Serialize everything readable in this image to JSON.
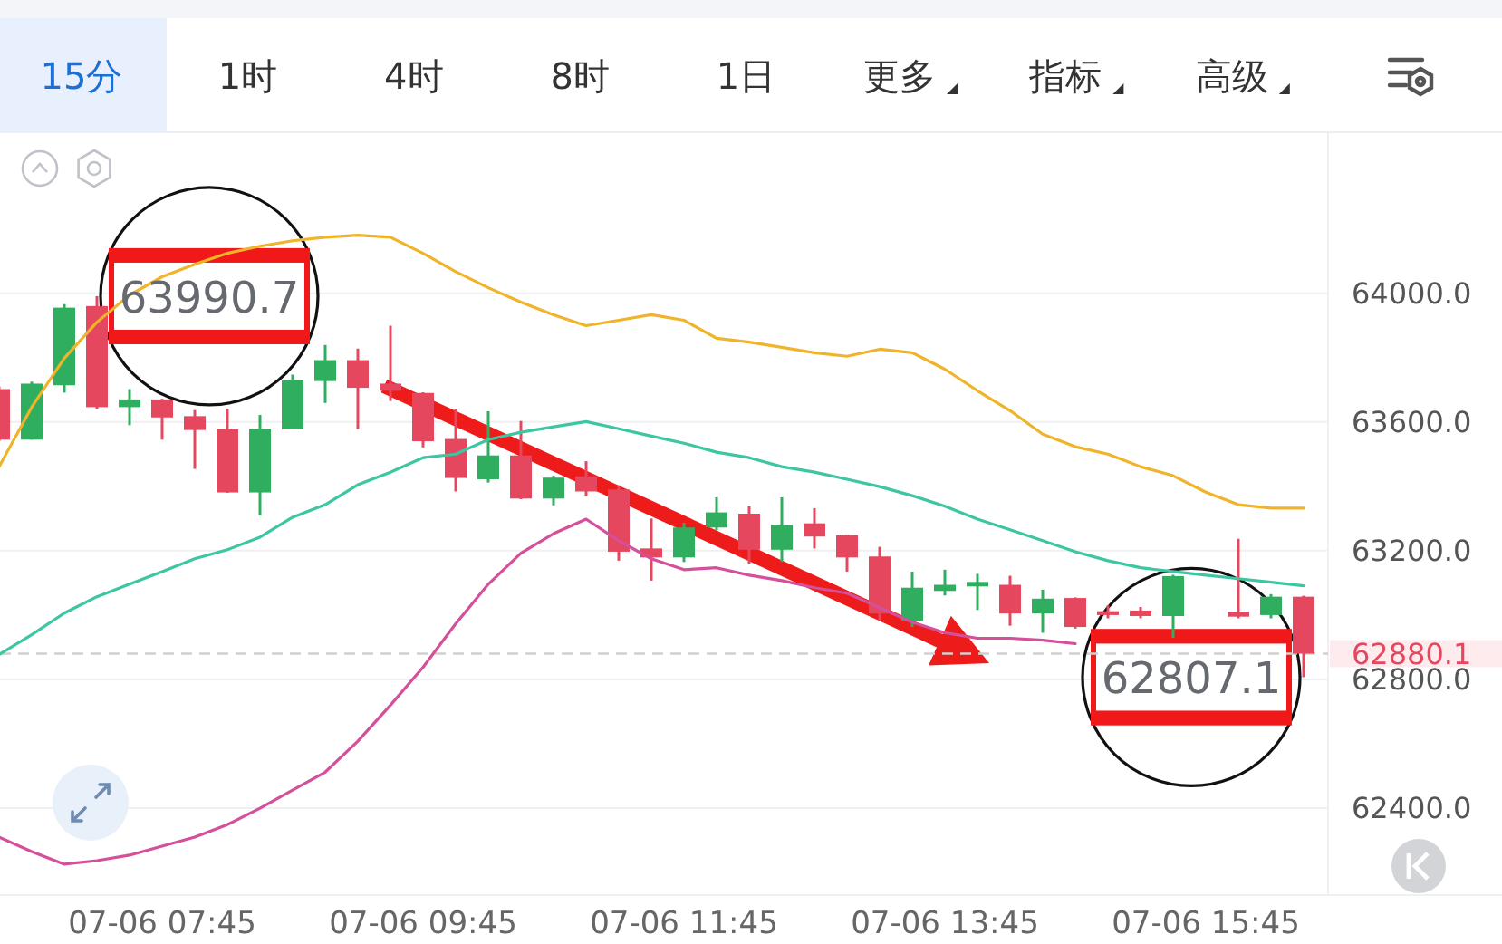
{
  "chart_data": {
    "type": "candlestick",
    "categories": [
      null,
      null,
      null,
      null,
      null,
      "07-06 07:45",
      null,
      null,
      null,
      null,
      null,
      null,
      null,
      "07-06 09:45",
      null,
      null,
      null,
      null,
      null,
      null,
      null,
      "07-06 11:45",
      null,
      null,
      null,
      null,
      null,
      null,
      null,
      "07-06 13:45",
      null,
      null,
      null,
      null,
      null,
      null,
      null,
      "07-06 15:45",
      null,
      null,
      null
    ],
    "ohlc": [
      [
        63702,
        63710,
        63540,
        63545
      ],
      [
        63545,
        63725,
        63545,
        63719
      ],
      [
        63714,
        63966,
        63691,
        63955
      ],
      [
        63960,
        63990.7,
        63640,
        63646
      ],
      [
        63646,
        63702,
        63590,
        63670
      ],
      [
        63670,
        63672,
        63545,
        63614
      ],
      [
        63618,
        63637,
        63454,
        63575
      ],
      [
        63577,
        63641,
        63380,
        63381
      ],
      [
        63381,
        63622,
        63309,
        63579
      ],
      [
        63577,
        63747,
        63577,
        63731
      ],
      [
        63727,
        63839,
        63659,
        63792
      ],
      [
        63792,
        63828,
        63577,
        63706
      ],
      [
        63719,
        63899,
        63665,
        63697
      ],
      [
        63690,
        63692,
        63521,
        63540
      ],
      [
        63547,
        63641,
        63384,
        63426
      ],
      [
        63422,
        63633,
        63412,
        63496
      ],
      [
        63496,
        63603,
        63360,
        63362
      ],
      [
        63362,
        63433,
        63341,
        63427
      ],
      [
        63431,
        63478,
        63371,
        63384
      ],
      [
        63390,
        63403,
        63169,
        63197
      ],
      [
        63207,
        63300,
        63107,
        63179
      ],
      [
        63179,
        63287,
        63165,
        63272
      ],
      [
        63272,
        63366,
        63263,
        63319
      ],
      [
        63315,
        63338,
        63160,
        63203
      ],
      [
        63203,
        63366,
        63165,
        63281
      ],
      [
        63285,
        63332,
        63207,
        63244
      ],
      [
        63248,
        63250,
        63135,
        63179
      ],
      [
        63182,
        63212,
        62982,
        63005
      ],
      [
        62982,
        63135,
        62963,
        63085
      ],
      [
        63075,
        63141,
        63061,
        63094
      ],
      [
        63089,
        63128,
        63016,
        63103
      ],
      [
        63094,
        63122,
        62967,
        63005
      ],
      [
        63005,
        63079,
        62945,
        63051
      ],
      [
        63053,
        63055,
        62958,
        62963
      ],
      [
        63012,
        63030,
        62990,
        63000
      ],
      [
        63014,
        63025,
        62990,
        62997
      ],
      [
        62997,
        63125,
        62929,
        63121
      ],
      null,
      [
        63010,
        63237,
        62990,
        62995
      ],
      [
        63000,
        63065,
        62990,
        63057
      ],
      [
        63057,
        63060,
        62807.1,
        62880.1
      ]
    ],
    "colors": [
      "#e5485e",
      "#2fae5f",
      "#2fae5f",
      "#e5485e",
      "#2fae5f",
      "#e5485e",
      "#e5485e",
      "#e5485e",
      "#2fae5f",
      "#2fae5f",
      "#2fae5f",
      "#e5485e",
      "#e5485e",
      "#e5485e",
      "#e5485e",
      "#2fae5f",
      "#e5485e",
      "#2fae5f",
      "#e5485e",
      "#e5485e",
      "#e5485e",
      "#2fae5f",
      "#2fae5f",
      "#e5485e",
      "#2fae5f",
      "#e5485e",
      "#e5485e",
      "#e5485e",
      "#2fae5f",
      "#2fae5f",
      "#2fae5f",
      "#e5485e",
      "#2fae5f",
      "#e5485e",
      "#e5485e",
      "#e5485e",
      "#2fae5f",
      null,
      "#e5485e",
      "#2fae5f",
      "#e5485e"
    ],
    "series": [
      {
        "type": "line",
        "color": "#f0b42a",
        "values": [
          63461,
          63646,
          63798,
          63910,
          63994,
          64051,
          64090,
          64124,
          64146,
          64163,
          64174,
          64180,
          64174,
          64124,
          64067,
          64017,
          63972,
          63933,
          63899,
          63916,
          63933,
          63916,
          63860,
          63848,
          63832,
          63815,
          63804,
          63826,
          63815,
          63764,
          63697,
          63635,
          63562,
          63523,
          63500,
          63461,
          63433,
          63382,
          63343,
          63332,
          63332
        ]
      },
      {
        "type": "line",
        "color": "#3ec6a2",
        "values": [
          62877,
          62939,
          63006,
          63057,
          63096,
          63135,
          63175,
          63203,
          63242,
          63304,
          63343,
          63405,
          63444,
          63489,
          63500,
          63545,
          63568,
          63585,
          63601,
          63579,
          63556,
          63534,
          63506,
          63489,
          63461,
          63444,
          63422,
          63399,
          63371,
          63338,
          63298,
          63265,
          63231,
          63197,
          63169,
          63147,
          63135,
          63124,
          63113,
          63102,
          63091
        ]
      },
      {
        "type": "line",
        "color": "#d4509a",
        "values": [
          62310,
          62265,
          62226,
          62237,
          62254,
          62282,
          62310,
          62349,
          62400,
          62456,
          62512,
          62608,
          62720,
          62838,
          62973,
          63096,
          63192,
          63253,
          63298,
          63231,
          63175,
          63141,
          63147,
          63124,
          63107,
          63085,
          63068,
          63023,
          62978,
          62945,
          62928,
          62928,
          62922,
          62911,
          null,
          null,
          null,
          null,
          null,
          null,
          null
        ]
      }
    ],
    "ylim": [
      62130,
      64500
    ],
    "yticks": [
      {
        "value": 62400,
        "label": "62400.0"
      },
      {
        "value": 62800,
        "label": "62800.0"
      },
      {
        "value": 63200,
        "label": "63200.0"
      },
      {
        "value": 63600,
        "label": "63600.0"
      },
      {
        "value": 64000,
        "label": "64000.0"
      }
    ],
    "grid": "y",
    "ref_lines": [
      {
        "axis": "y",
        "value": 62880.1,
        "label": "62880.1",
        "line_style": "dashed"
      }
    ],
    "annotations": [
      "15分",
      "1时",
      "4时",
      "8时",
      "1日",
      "更多",
      "指标",
      "高级",
      "63990.7",
      "62807.1"
    ]
  }
}
